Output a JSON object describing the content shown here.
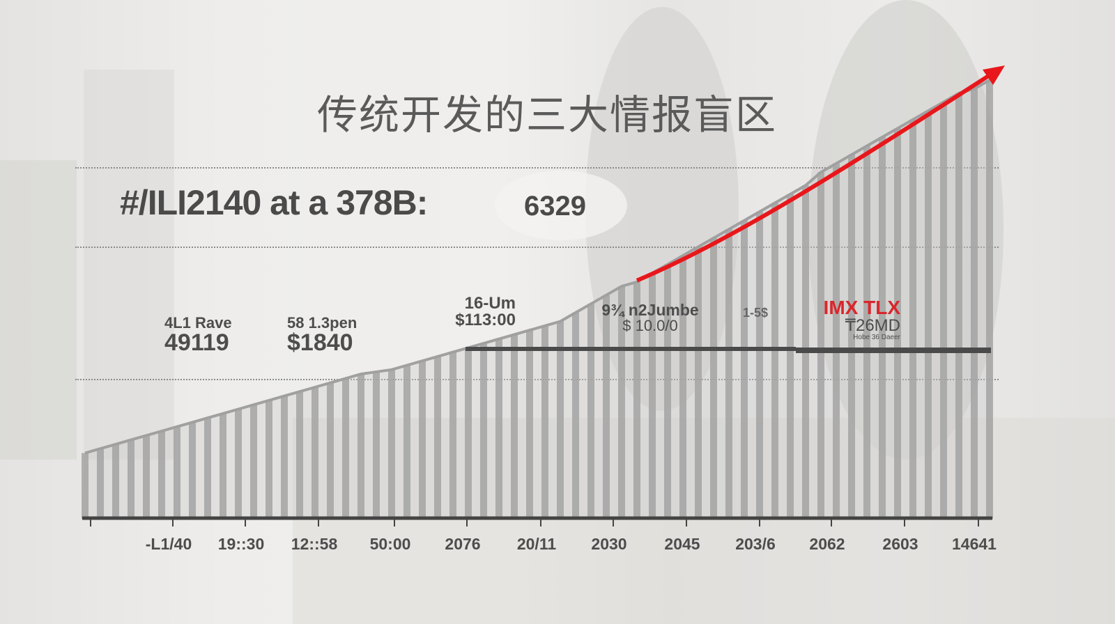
{
  "title": "传统开发的三大情报盲区",
  "headline": {
    "text": "#/ILI2140 at a 378B:",
    "value": "6329"
  },
  "annotations": [
    {
      "label": "4L1 Rave",
      "value": "49119"
    },
    {
      "label": "58 1.3pen",
      "value": "$1840"
    },
    {
      "label": "16-Um",
      "value": "$113:00"
    },
    {
      "label": "9¾ n2Jumbe",
      "value": "$ 10.0/0"
    },
    {
      "label": "1-5$",
      "value": ""
    },
    {
      "label": "IMX TLX",
      "value": "₸26MD",
      "sub": "Hobe 36 Daeer"
    }
  ],
  "colors": {
    "bars": "#a3a3a3",
    "trend_arrow": "#e8171b",
    "highlight_text": "#d9262b",
    "text": "#4d4d4d"
  },
  "chart_data": {
    "type": "bar",
    "title": "传统开发的三大情报盲区",
    "xlabel": "",
    "ylabel": "",
    "x_tick_labels": [
      "-L1/40",
      "19::30",
      "12::58",
      "50:00",
      "2076",
      "20/11",
      "2030",
      "2045",
      "203/6",
      "2062",
      "2603",
      "14641"
    ],
    "values": [
      15,
      16,
      17,
      18,
      19,
      20,
      21,
      22,
      23,
      24,
      25,
      26,
      27,
      28,
      29,
      30,
      31,
      32,
      33,
      33.5,
      34,
      35,
      36,
      37,
      38,
      39,
      40,
      41,
      42,
      43,
      44,
      45,
      47,
      49,
      51,
      53,
      54,
      56,
      58,
      60,
      62,
      64,
      66,
      68,
      70,
      72,
      74,
      76,
      79,
      81,
      83,
      85,
      87,
      89,
      91,
      93,
      95,
      97,
      98,
      100
    ],
    "ylim": [
      0,
      100
    ],
    "grid": "dotted horizontal",
    "trend_arrow": "red, rising from bar 36 to beyond last bar",
    "reference_lines": "two dark horizontal segments across bars 25–59"
  }
}
